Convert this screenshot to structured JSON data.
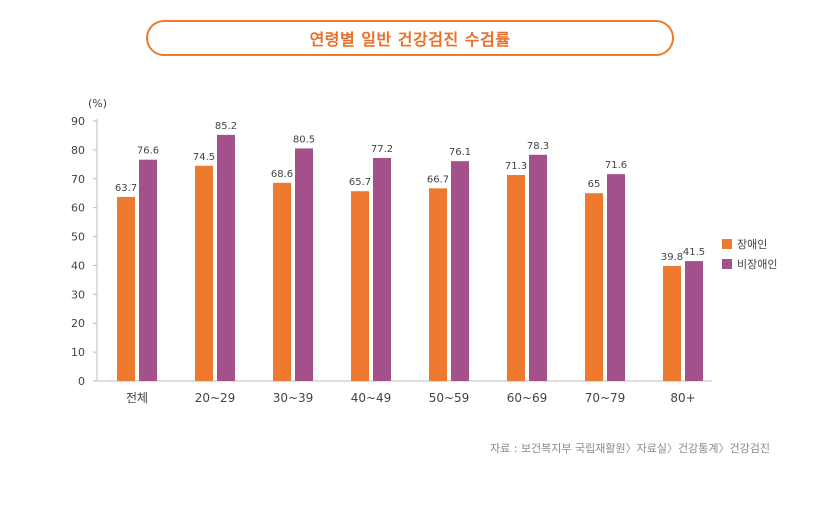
{
  "colors": {
    "accent": "#ed7a2e",
    "series_disabled": "#ed7a2e",
    "series_non_disabled": "#a4508a",
    "axis": "#bcbcbc",
    "text": "#444444"
  },
  "chart_data": {
    "type": "bar",
    "title": "연령별 일반 건강검진 수검률",
    "unit_label": "(%)",
    "categories": [
      "전체",
      "20~29",
      "30~39",
      "40~49",
      "50~59",
      "60~69",
      "70~79",
      "80+"
    ],
    "series": [
      {
        "name": "장애인",
        "color": "#ed7a2e",
        "values": [
          63.7,
          74.5,
          68.6,
          65.7,
          66.7,
          71.3,
          65,
          39.8
        ]
      },
      {
        "name": "비장애인",
        "color": "#a4508a",
        "values": [
          76.6,
          85.2,
          80.5,
          77.2,
          76.1,
          78.3,
          71.6,
          41.5
        ]
      }
    ],
    "ylim": [
      0,
      90
    ],
    "yticks": [
      0,
      10,
      20,
      30,
      40,
      50,
      60,
      70,
      80,
      90
    ],
    "legend_position": "right",
    "grid": false
  },
  "source_note": "자료 : 보건복지부 국립재활원〉자료실〉건강통계〉건강검진"
}
